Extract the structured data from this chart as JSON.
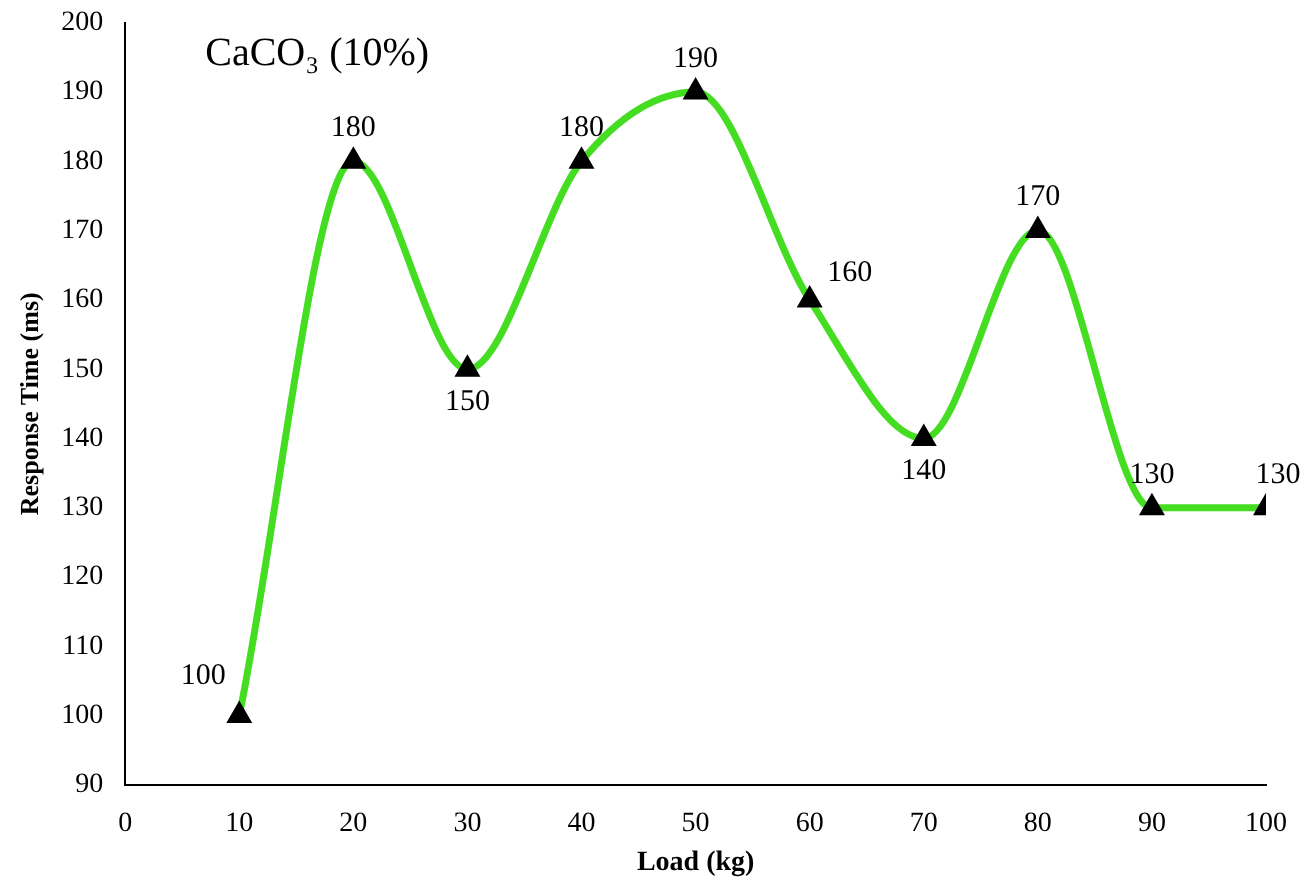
{
  "chart_data": {
    "type": "line",
    "title": "CaCO₃ (10%)",
    "xlabel": "Load (kg)",
    "ylabel": "Response Time (ms)",
    "x": [
      10,
      20,
      30,
      40,
      50,
      60,
      70,
      80,
      90,
      100
    ],
    "series": [
      {
        "color": "#44dd22",
        "values": [
          100,
          180,
          150,
          180,
          190,
          160,
          140,
          170,
          130,
          130
        ]
      }
    ],
    "xlim": [
      0,
      100
    ],
    "xticks": [
      0,
      10,
      20,
      30,
      40,
      50,
      60,
      70,
      80,
      90,
      100
    ],
    "ylim": [
      90,
      200
    ],
    "yticks": [
      90,
      100,
      110,
      120,
      130,
      140,
      150,
      160,
      170,
      180,
      190,
      200
    ],
    "grid": false,
    "legend": false,
    "marker": "triangle",
    "line_style": "solid",
    "data_labels": true
  }
}
